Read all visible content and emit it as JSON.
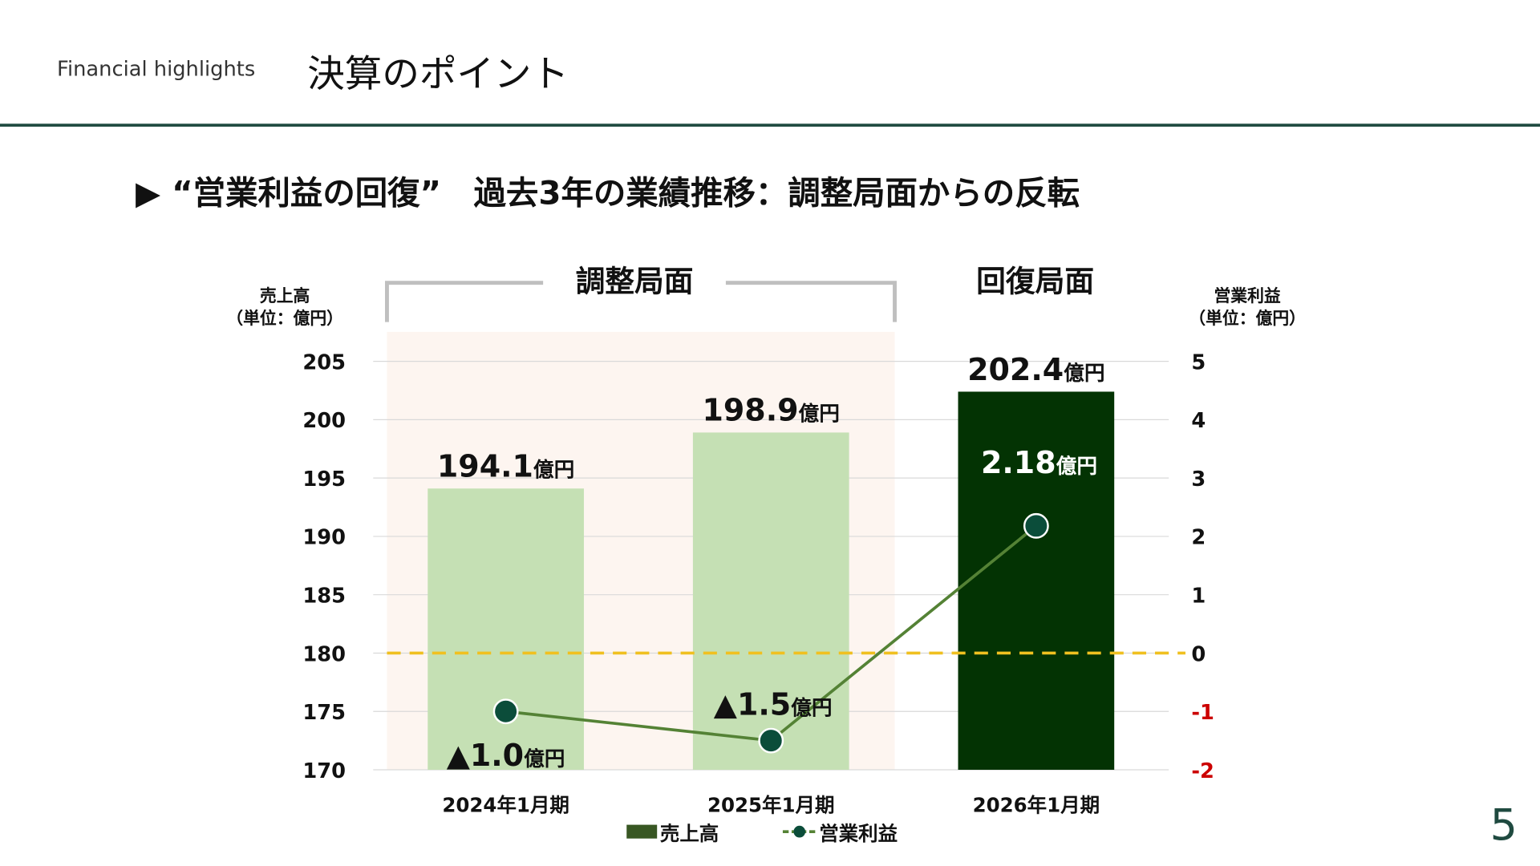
{
  "header": {
    "subtitle": "Financial highlights",
    "title": "決算のポイント"
  },
  "headline": "▶ “営業利益の回復”　過去3年の業績推移：調整局面からの反転",
  "page_number": "5",
  "chart_data": {
    "type": "bar+line",
    "categories": [
      "2024年1月期",
      "2025年1月期",
      "2026年1月期"
    ],
    "phases": [
      {
        "label": "調整局面",
        "categories": [
          "2024年1月期",
          "2025年1月期"
        ]
      },
      {
        "label": "回復局面",
        "categories": [
          "2026年1月期"
        ]
      }
    ],
    "left_axis": {
      "title_line1": "売上高",
      "title_line2": "（単位：億円）",
      "ylim": [
        170,
        205
      ],
      "ticks": [
        "205",
        "200",
        "195",
        "190",
        "185",
        "180",
        "175",
        "170"
      ]
    },
    "right_axis": {
      "title_line1": "営業利益",
      "title_line2": "（単位：億円）",
      "ylim": [
        -2,
        5
      ],
      "ticks": [
        "5",
        "4",
        "3",
        "2",
        "1",
        "0",
        "-1",
        "-2"
      ],
      "negative_color": "#cc0000"
    },
    "series": [
      {
        "name": "売上高",
        "type": "bar",
        "axis": "left",
        "values": [
          194.1,
          198.9,
          202.4
        ],
        "labels": [
          {
            "num": "194.1",
            "unit": "億円"
          },
          {
            "num": "198.9",
            "unit": "億円"
          },
          {
            "num": "202.4",
            "unit": "億円"
          }
        ],
        "colors": [
          "#c5e0b4",
          "#c5e0b4",
          "#033303"
        ]
      },
      {
        "name": "営業利益",
        "type": "line",
        "axis": "right",
        "values": [
          -1.0,
          -1.5,
          2.18
        ],
        "labels": [
          {
            "num": "▲1.0",
            "unit": "億円"
          },
          {
            "num": "▲1.5",
            "unit": "億円"
          },
          {
            "num": "2.18",
            "unit": "億円"
          }
        ],
        "line_color": "#548235",
        "marker_color": "#0b4d3a"
      }
    ],
    "reference_line": {
      "value": 0,
      "axis": "right",
      "color": "#f0c020",
      "style": "dashed"
    },
    "grid": true,
    "legend": "bottom",
    "colors": {
      "adjust_shade": "#fdf5f0",
      "legend_bar": "#385723"
    }
  }
}
